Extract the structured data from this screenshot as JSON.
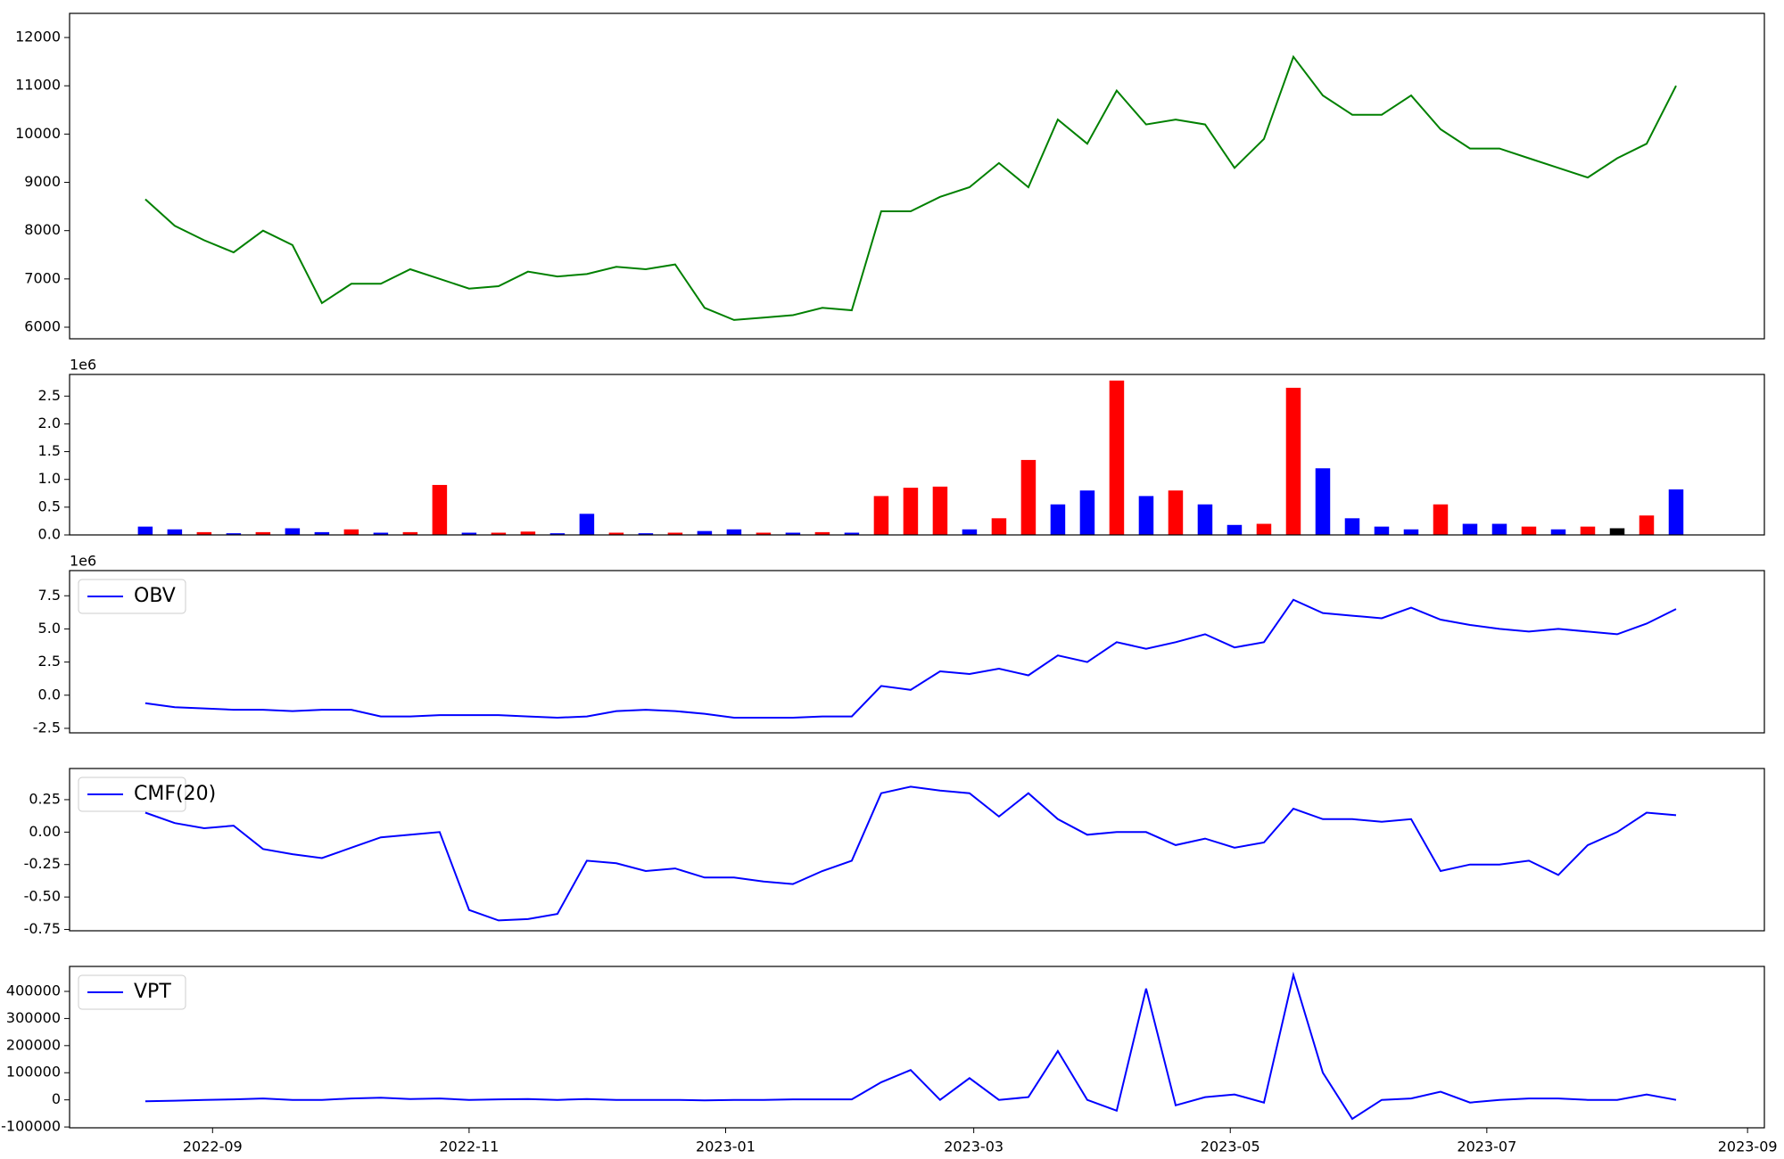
{
  "chart_data": [
    {
      "type": "line",
      "color": "green",
      "x": [
        19220,
        19227,
        19234,
        19241,
        19248,
        19255,
        19262,
        19269,
        19276,
        19283,
        19290,
        19297,
        19304,
        19311,
        19318,
        19325,
        19332,
        19339,
        19346,
        19353,
        19360,
        19367,
        19374,
        19381,
        19388,
        19395,
        19402,
        19409,
        19416,
        19423,
        19430,
        19437,
        19444,
        19451,
        19458,
        19465,
        19472,
        19479,
        19486,
        19493,
        19500,
        19507,
        19514,
        19521,
        19528,
        19535,
        19542,
        19549,
        19556,
        19563,
        19570,
        19577,
        19584
      ],
      "values": [
        8650,
        8100,
        7800,
        7550,
        8000,
        7700,
        6500,
        6900,
        6900,
        7200,
        7000,
        6800,
        6850,
        7150,
        7050,
        7100,
        7250,
        7200,
        7300,
        6400,
        6150,
        6200,
        6250,
        6400,
        6350,
        8400,
        8400,
        8700,
        8900,
        9400,
        8900,
        10300,
        9800,
        10900,
        10200,
        10300,
        10200,
        9300,
        9900,
        11600,
        10800,
        10400,
        10400,
        10800,
        10100,
        9700,
        9700,
        9500,
        9300,
        9100,
        9500,
        9800,
        11000
      ],
      "xlim": [
        19202,
        19605
      ],
      "ylim": [
        5760,
        12500
      ],
      "yticks": [
        6000,
        7000,
        8000,
        9000,
        10000,
        11000,
        12000
      ]
    },
    {
      "type": "bar",
      "y_offset_label": "1e6",
      "x": [
        19220,
        19227,
        19234,
        19241,
        19248,
        19255,
        19262,
        19269,
        19276,
        19283,
        19290,
        19297,
        19304,
        19311,
        19318,
        19325,
        19332,
        19339,
        19346,
        19353,
        19360,
        19367,
        19374,
        19381,
        19388,
        19395,
        19402,
        19409,
        19416,
        19423,
        19430,
        19437,
        19444,
        19451,
        19458,
        19465,
        19472,
        19479,
        19486,
        19493,
        19500,
        19507,
        19514,
        19521,
        19528,
        19535,
        19542,
        19549,
        19556,
        19563,
        19570,
        19577,
        19584
      ],
      "values": [
        150000,
        100000,
        50000,
        30000,
        50000,
        120000,
        50000,
        100000,
        40000,
        50000,
        900000,
        40000,
        40000,
        60000,
        30000,
        380000,
        40000,
        30000,
        40000,
        70000,
        100000,
        40000,
        40000,
        50000,
        40000,
        700000,
        850000,
        870000,
        100000,
        300000,
        1350000,
        550000,
        800000,
        2780000,
        700000,
        800000,
        550000,
        180000,
        200000,
        2650000,
        1200000,
        300000,
        150000,
        100000,
        550000,
        200000,
        200000,
        150000,
        100000,
        150000,
        120000,
        350000,
        820000
      ],
      "colors": [
        "blue",
        "blue",
        "red",
        "blue",
        "red",
        "blue",
        "blue",
        "red",
        "blue",
        "red",
        "red",
        "blue",
        "red",
        "red",
        "blue",
        "blue",
        "red",
        "blue",
        "red",
        "blue",
        "blue",
        "red",
        "blue",
        "red",
        "blue",
        "red",
        "red",
        "red",
        "blue",
        "red",
        "red",
        "blue",
        "blue",
        "red",
        "blue",
        "red",
        "blue",
        "blue",
        "red",
        "red",
        "blue",
        "blue",
        "blue",
        "blue",
        "red",
        "blue",
        "blue",
        "red",
        "blue",
        "red",
        "black",
        "red",
        "blue"
      ],
      "xlim": [
        19202,
        19605
      ],
      "ylim": [
        0,
        2890000
      ],
      "yticks": [
        {
          "value": 0,
          "label": "0.0"
        },
        {
          "value": 500000,
          "label": "0.5"
        },
        {
          "value": 1000000,
          "label": "1.0"
        },
        {
          "value": 1500000,
          "label": "1.5"
        },
        {
          "value": 2000000,
          "label": "2.0"
        },
        {
          "value": 2500000,
          "label": "2.5"
        }
      ]
    },
    {
      "type": "line",
      "y_offset_label": "1e6",
      "legend": "upper left",
      "x": [
        19220,
        19227,
        19234,
        19241,
        19248,
        19255,
        19262,
        19269,
        19276,
        19283,
        19290,
        19297,
        19304,
        19311,
        19318,
        19325,
        19332,
        19339,
        19346,
        19353,
        19360,
        19367,
        19374,
        19381,
        19388,
        19395,
        19402,
        19409,
        19416,
        19423,
        19430,
        19437,
        19444,
        19451,
        19458,
        19465,
        19472,
        19479,
        19486,
        19493,
        19500,
        19507,
        19514,
        19521,
        19528,
        19535,
        19542,
        19549,
        19556,
        19563,
        19570,
        19577,
        19584
      ],
      "series": [
        {
          "name": "OBV",
          "color": "blue",
          "values": [
            -600000,
            -900000,
            -1000000,
            -1100000,
            -1100000,
            -1200000,
            -1100000,
            -1100000,
            -1600000,
            -1600000,
            -1500000,
            -1500000,
            -1500000,
            -1600000,
            -1700000,
            -1600000,
            -1200000,
            -1100000,
            -1200000,
            -1400000,
            -1700000,
            -1700000,
            -1700000,
            -1600000,
            -1600000,
            700000,
            400000,
            1800000,
            1600000,
            2000000,
            1500000,
            3000000,
            2500000,
            4000000,
            3500000,
            4000000,
            4600000,
            3600000,
            4000000,
            7200000,
            6200000,
            6000000,
            5800000,
            6600000,
            5700000,
            5300000,
            5000000,
            4800000,
            5000000,
            4800000,
            4600000,
            5400000,
            6500000
          ]
        }
      ],
      "xlim": [
        19202,
        19605
      ],
      "ylim": [
        -2840000,
        9400000
      ],
      "yticks": [
        {
          "value": -2500000,
          "label": "-2.5"
        },
        {
          "value": 0,
          "label": "0.0"
        },
        {
          "value": 2500000,
          "label": "2.5"
        },
        {
          "value": 5000000,
          "label": "5.0"
        },
        {
          "value": 7500000,
          "label": "7.5"
        }
      ]
    },
    {
      "type": "line",
      "legend": "upper left",
      "x": [
        19220,
        19227,
        19234,
        19241,
        19248,
        19255,
        19262,
        19269,
        19276,
        19283,
        19290,
        19297,
        19304,
        19311,
        19318,
        19325,
        19332,
        19339,
        19346,
        19353,
        19360,
        19367,
        19374,
        19381,
        19388,
        19395,
        19402,
        19409,
        19416,
        19423,
        19430,
        19437,
        19444,
        19451,
        19458,
        19465,
        19472,
        19479,
        19486,
        19493,
        19500,
        19507,
        19514,
        19521,
        19528,
        19535,
        19542,
        19549,
        19556,
        19563,
        19570,
        19577,
        19584
      ],
      "series": [
        {
          "name": "CMF(20)",
          "color": "blue",
          "values": [
            0.15,
            0.07,
            0.03,
            0.05,
            -0.13,
            -0.17,
            -0.2,
            -0.12,
            -0.04,
            -0.02,
            0.0,
            -0.6,
            -0.68,
            -0.67,
            -0.63,
            -0.22,
            -0.24,
            -0.3,
            -0.28,
            -0.35,
            -0.35,
            -0.38,
            -0.4,
            -0.3,
            -0.22,
            0.3,
            0.35,
            0.32,
            0.3,
            0.12,
            0.3,
            0.1,
            -0.02,
            0.0,
            0.0,
            -0.1,
            -0.05,
            -0.12,
            -0.08,
            0.18,
            0.1,
            0.1,
            0.08,
            0.1,
            -0.3,
            -0.25,
            -0.25,
            -0.22,
            -0.33,
            -0.1,
            0.0,
            0.15,
            0.13
          ]
        }
      ],
      "xlim": [
        19202,
        19605
      ],
      "ylim": [
        -0.76,
        0.49
      ],
      "yticks": [
        -0.75,
        {
          "value": -0.5,
          "label": "-0.50"
        },
        -0.25,
        {
          "value": 0,
          "label": "0.00"
        },
        0.25
      ]
    },
    {
      "type": "line",
      "legend": "upper left",
      "x": [
        19220,
        19227,
        19234,
        19241,
        19248,
        19255,
        19262,
        19269,
        19276,
        19283,
        19290,
        19297,
        19304,
        19311,
        19318,
        19325,
        19332,
        19339,
        19346,
        19353,
        19360,
        19367,
        19374,
        19381,
        19388,
        19395,
        19402,
        19409,
        19416,
        19423,
        19430,
        19437,
        19444,
        19451,
        19458,
        19465,
        19472,
        19479,
        19486,
        19493,
        19500,
        19507,
        19514,
        19521,
        19528,
        19535,
        19542,
        19549,
        19556,
        19563,
        19570,
        19577,
        19584
      ],
      "series": [
        {
          "name": "VPT",
          "color": "blue",
          "values": [
            -5000,
            -3000,
            0,
            2000,
            5000,
            0,
            0,
            5000,
            8000,
            3000,
            5000,
            0,
            2000,
            3000,
            0,
            3000,
            0,
            0,
            0,
            -2000,
            0,
            0,
            2000,
            2000,
            2000,
            65000,
            110000,
            0,
            80000,
            0,
            10000,
            180000,
            0,
            -40000,
            410000,
            -20000,
            10000,
            20000,
            -10000,
            460000,
            100000,
            -70000,
            0,
            5000,
            30000,
            -10000,
            0,
            5000,
            5000,
            0,
            0,
            20000,
            0
          ]
        }
      ],
      "xlim": [
        19202,
        19605
      ],
      "ylim": [
        -103000,
        492000
      ],
      "yticks": [
        -100000,
        0,
        100000,
        200000,
        300000,
        400000
      ],
      "xticks": [
        {
          "value": 19236,
          "label": "2022-09"
        },
        {
          "value": 19297,
          "label": "2022-11"
        },
        {
          "value": 19358,
          "label": "2023-01"
        },
        {
          "value": 19417,
          "label": "2023-03"
        },
        {
          "value": 19478,
          "label": "2023-05"
        },
        {
          "value": 19539,
          "label": "2023-07"
        },
        {
          "value": 19601,
          "label": "2023-09"
        }
      ]
    }
  ]
}
